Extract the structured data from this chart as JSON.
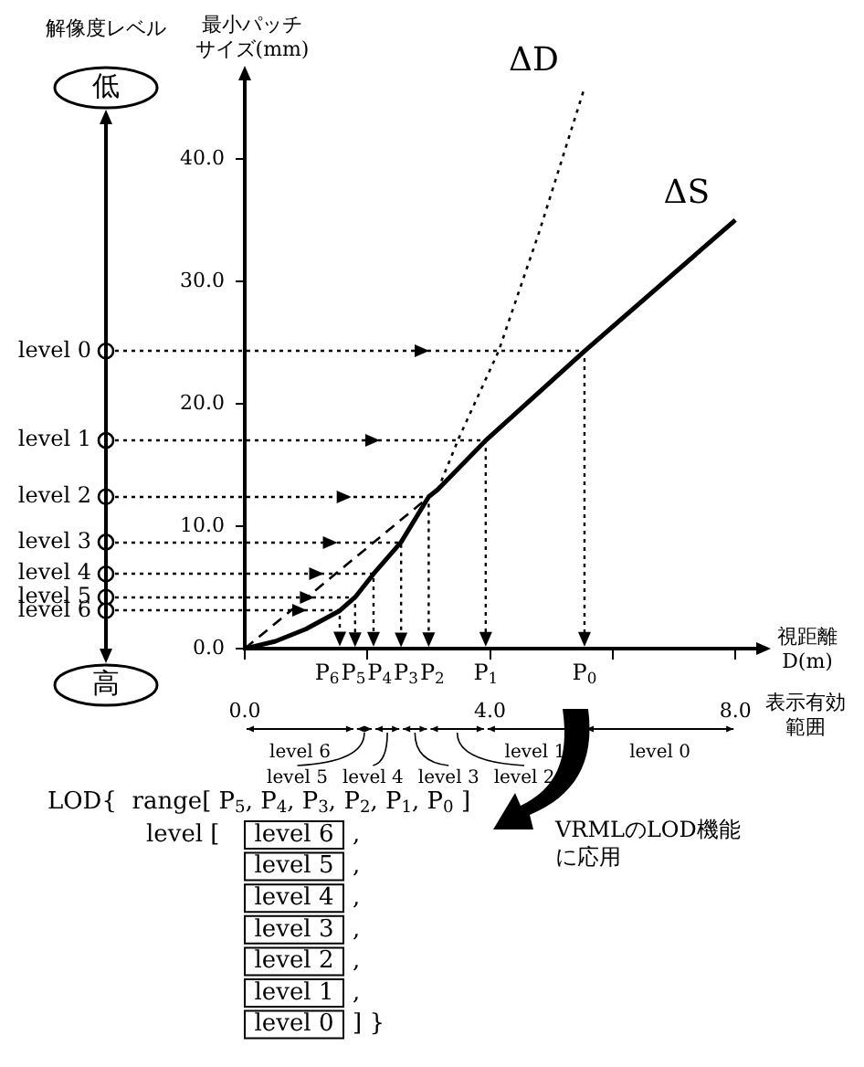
{
  "chart_data": {
    "type": "line",
    "xlabel": "視距離\nD(m)",
    "ylabel": "最小パッチサイズ(mm)",
    "xlim": [
      0,
      8.4
    ],
    "ylim": [
      0,
      47
    ],
    "xticks": [
      {
        "value": 0,
        "label": "0.0"
      },
      {
        "value": 2,
        "label": null
      },
      {
        "value": 4,
        "label": "4.0"
      },
      {
        "value": 6,
        "label": null
      },
      {
        "value": 8,
        "label": "8.0"
      }
    ],
    "yticks": [
      {
        "value": 0,
        "label": "0.0"
      },
      {
        "value": 10,
        "label": "10.0"
      },
      {
        "value": 20,
        "label": "20.0"
      },
      {
        "value": 30,
        "label": "30.0"
      },
      {
        "value": 40,
        "label": "40.0"
      }
    ],
    "grid": false,
    "marker": "none",
    "series": [
      {
        "name": "ΔS",
        "color": "#000000",
        "line_style": "solid",
        "x": [
          0,
          0.5,
          1.0,
          1.55,
          1.8,
          2.1,
          2.55,
          3.0,
          3.15,
          3.93,
          5.54,
          8.0
        ],
        "values": [
          0,
          0.6,
          1.6,
          3.1,
          4.2,
          6.1,
          8.7,
          12.4,
          13.0,
          17.0,
          24.3,
          35.0
        ]
      },
      {
        "name": "ΔD",
        "color": "#000000",
        "line_style": "dotted",
        "x": [
          3.15,
          3.5,
          4.14,
          4.8,
          5.54
        ],
        "values": [
          13.0,
          17.3,
          24.3,
          34.0,
          45.8
        ]
      },
      {
        "color": "#000000",
        "line_style": "dashed",
        "x": [
          0,
          3.15
        ],
        "values": [
          0,
          13.0
        ]
      }
    ],
    "annotations": [
      "P$_{6}$",
      "P$_{5}$",
      "P$_{4}$",
      "P$_{3}$",
      "P$_{2}$",
      "P$_{1}$",
      "P$_{0}$",
      "level 0",
      "level 1",
      "level 2",
      "level 3",
      "level 4",
      "level 5",
      "level 6",
      "level 6",
      "level 5",
      "level 4",
      "level 3",
      "level 2",
      "level 1",
      "level 0",
      "解像度レベル",
      "低",
      "高",
      "表示有効範囲",
      "LOD{  range[ P$_{5}$, P$_{4}$, P$_{3}$, P$_{2}$, P$_{1}$, P$_{0}$ ]",
      "level [",
      "level 6 ,",
      "level 5 ,",
      "level 4 ,",
      "level 3 ,",
      "level 2 ,",
      "level 1 ,",
      "level 0 ] }",
      "VRMLのLOD機能に応用"
    ]
  }
}
